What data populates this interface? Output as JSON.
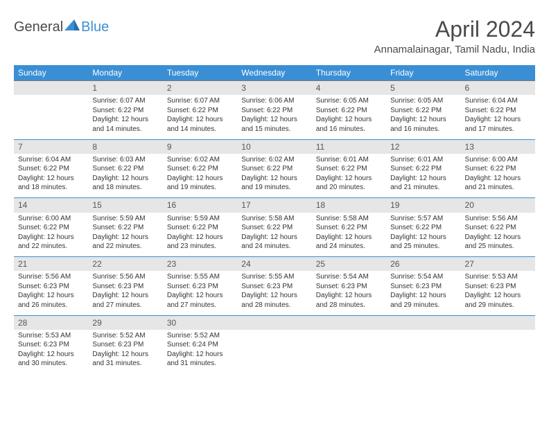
{
  "logo": {
    "word1": "General",
    "word2": "Blue",
    "icon_fill": "#3a8fd4"
  },
  "title": "April 2024",
  "location": "Annamalainagar, Tamil Nadu, India",
  "colors": {
    "header_bg": "#3a8fd4",
    "header_text": "#ffffff",
    "daynum_bg": "#e6e6e6",
    "row_divider": "#3a8fd4",
    "daynum_border": "#777777",
    "body_text": "#333333"
  },
  "fonts": {
    "title_size": 32,
    "location_size": 15,
    "th_size": 12,
    "daynum_size": 12,
    "cell_size": 10
  },
  "weekdays": [
    "Sunday",
    "Monday",
    "Tuesday",
    "Wednesday",
    "Thursday",
    "Friday",
    "Saturday"
  ],
  "weeks": [
    [
      null,
      {
        "n": "1",
        "sr": "Sunrise: 6:07 AM",
        "ss": "Sunset: 6:22 PM",
        "d1": "Daylight: 12 hours",
        "d2": "and 14 minutes."
      },
      {
        "n": "2",
        "sr": "Sunrise: 6:07 AM",
        "ss": "Sunset: 6:22 PM",
        "d1": "Daylight: 12 hours",
        "d2": "and 14 minutes."
      },
      {
        "n": "3",
        "sr": "Sunrise: 6:06 AM",
        "ss": "Sunset: 6:22 PM",
        "d1": "Daylight: 12 hours",
        "d2": "and 15 minutes."
      },
      {
        "n": "4",
        "sr": "Sunrise: 6:05 AM",
        "ss": "Sunset: 6:22 PM",
        "d1": "Daylight: 12 hours",
        "d2": "and 16 minutes."
      },
      {
        "n": "5",
        "sr": "Sunrise: 6:05 AM",
        "ss": "Sunset: 6:22 PM",
        "d1": "Daylight: 12 hours",
        "d2": "and 16 minutes."
      },
      {
        "n": "6",
        "sr": "Sunrise: 6:04 AM",
        "ss": "Sunset: 6:22 PM",
        "d1": "Daylight: 12 hours",
        "d2": "and 17 minutes."
      }
    ],
    [
      {
        "n": "7",
        "sr": "Sunrise: 6:04 AM",
        "ss": "Sunset: 6:22 PM",
        "d1": "Daylight: 12 hours",
        "d2": "and 18 minutes."
      },
      {
        "n": "8",
        "sr": "Sunrise: 6:03 AM",
        "ss": "Sunset: 6:22 PM",
        "d1": "Daylight: 12 hours",
        "d2": "and 18 minutes."
      },
      {
        "n": "9",
        "sr": "Sunrise: 6:02 AM",
        "ss": "Sunset: 6:22 PM",
        "d1": "Daylight: 12 hours",
        "d2": "and 19 minutes."
      },
      {
        "n": "10",
        "sr": "Sunrise: 6:02 AM",
        "ss": "Sunset: 6:22 PM",
        "d1": "Daylight: 12 hours",
        "d2": "and 19 minutes."
      },
      {
        "n": "11",
        "sr": "Sunrise: 6:01 AM",
        "ss": "Sunset: 6:22 PM",
        "d1": "Daylight: 12 hours",
        "d2": "and 20 minutes."
      },
      {
        "n": "12",
        "sr": "Sunrise: 6:01 AM",
        "ss": "Sunset: 6:22 PM",
        "d1": "Daylight: 12 hours",
        "d2": "and 21 minutes."
      },
      {
        "n": "13",
        "sr": "Sunrise: 6:00 AM",
        "ss": "Sunset: 6:22 PM",
        "d1": "Daylight: 12 hours",
        "d2": "and 21 minutes."
      }
    ],
    [
      {
        "n": "14",
        "sr": "Sunrise: 6:00 AM",
        "ss": "Sunset: 6:22 PM",
        "d1": "Daylight: 12 hours",
        "d2": "and 22 minutes."
      },
      {
        "n": "15",
        "sr": "Sunrise: 5:59 AM",
        "ss": "Sunset: 6:22 PM",
        "d1": "Daylight: 12 hours",
        "d2": "and 22 minutes."
      },
      {
        "n": "16",
        "sr": "Sunrise: 5:59 AM",
        "ss": "Sunset: 6:22 PM",
        "d1": "Daylight: 12 hours",
        "d2": "and 23 minutes."
      },
      {
        "n": "17",
        "sr": "Sunrise: 5:58 AM",
        "ss": "Sunset: 6:22 PM",
        "d1": "Daylight: 12 hours",
        "d2": "and 24 minutes."
      },
      {
        "n": "18",
        "sr": "Sunrise: 5:58 AM",
        "ss": "Sunset: 6:22 PM",
        "d1": "Daylight: 12 hours",
        "d2": "and 24 minutes."
      },
      {
        "n": "19",
        "sr": "Sunrise: 5:57 AM",
        "ss": "Sunset: 6:22 PM",
        "d1": "Daylight: 12 hours",
        "d2": "and 25 minutes."
      },
      {
        "n": "20",
        "sr": "Sunrise: 5:56 AM",
        "ss": "Sunset: 6:22 PM",
        "d1": "Daylight: 12 hours",
        "d2": "and 25 minutes."
      }
    ],
    [
      {
        "n": "21",
        "sr": "Sunrise: 5:56 AM",
        "ss": "Sunset: 6:23 PM",
        "d1": "Daylight: 12 hours",
        "d2": "and 26 minutes."
      },
      {
        "n": "22",
        "sr": "Sunrise: 5:56 AM",
        "ss": "Sunset: 6:23 PM",
        "d1": "Daylight: 12 hours",
        "d2": "and 27 minutes."
      },
      {
        "n": "23",
        "sr": "Sunrise: 5:55 AM",
        "ss": "Sunset: 6:23 PM",
        "d1": "Daylight: 12 hours",
        "d2": "and 27 minutes."
      },
      {
        "n": "24",
        "sr": "Sunrise: 5:55 AM",
        "ss": "Sunset: 6:23 PM",
        "d1": "Daylight: 12 hours",
        "d2": "and 28 minutes."
      },
      {
        "n": "25",
        "sr": "Sunrise: 5:54 AM",
        "ss": "Sunset: 6:23 PM",
        "d1": "Daylight: 12 hours",
        "d2": "and 28 minutes."
      },
      {
        "n": "26",
        "sr": "Sunrise: 5:54 AM",
        "ss": "Sunset: 6:23 PM",
        "d1": "Daylight: 12 hours",
        "d2": "and 29 minutes."
      },
      {
        "n": "27",
        "sr": "Sunrise: 5:53 AM",
        "ss": "Sunset: 6:23 PM",
        "d1": "Daylight: 12 hours",
        "d2": "and 29 minutes."
      }
    ],
    [
      {
        "n": "28",
        "sr": "Sunrise: 5:53 AM",
        "ss": "Sunset: 6:23 PM",
        "d1": "Daylight: 12 hours",
        "d2": "and 30 minutes."
      },
      {
        "n": "29",
        "sr": "Sunrise: 5:52 AM",
        "ss": "Sunset: 6:23 PM",
        "d1": "Daylight: 12 hours",
        "d2": "and 31 minutes."
      },
      {
        "n": "30",
        "sr": "Sunrise: 5:52 AM",
        "ss": "Sunset: 6:24 PM",
        "d1": "Daylight: 12 hours",
        "d2": "and 31 minutes."
      },
      null,
      null,
      null,
      null
    ]
  ]
}
